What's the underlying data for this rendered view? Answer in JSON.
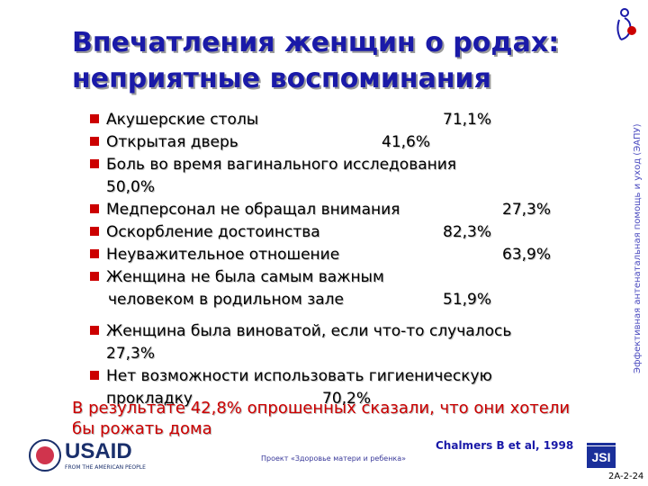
{
  "title": {
    "line1": "Впечатления женщин о родах:",
    "line2": "неприятные воспоминания"
  },
  "side_text": "Эффективная антенатальная помощь и уход (ЭАПУ)",
  "items": [
    {
      "label": "Акушерские столы",
      "value": "71,1%"
    },
    {
      "label": "Открытая дверь",
      "value": "41,6%"
    },
    {
      "label": "Боль во время вагинального исследования",
      "value": "50,0%"
    },
    {
      "label": "Медперсонал не обращал внимания",
      "value": "27,3%"
    },
    {
      "label": "Оскорбление достоинства",
      "value": "82,3%"
    },
    {
      "label": "Неуважительное отношение",
      "value": "63,9%"
    },
    {
      "label": "Женщина не была самым важным",
      "label2": "человеком в родильном зале",
      "value": "51,9%"
    },
    {
      "label": "Женщина была виноватой, если что-то случалось",
      "value": "27,3%"
    },
    {
      "label": "Нет возможности использовать гигиеническую",
      "label2": "прокладку",
      "value": "70,2%"
    }
  ],
  "result": "В результате 42,8% опрошенных сказали, что они хотели бы рожать дома",
  "citation": "Chalmers B et al, 1998",
  "project": "Проект «Здоровье матери и ребенка»",
  "slide_number": "2A-2-24",
  "logos": {
    "usaid_us": "USAID",
    "usaid_sub": "FROM THE AMERICAN PEOPLE",
    "jsi": "JSI"
  },
  "colors": {
    "title": "#1a1aa8",
    "bullet": "#cc0000",
    "result": "#cc0000"
  }
}
